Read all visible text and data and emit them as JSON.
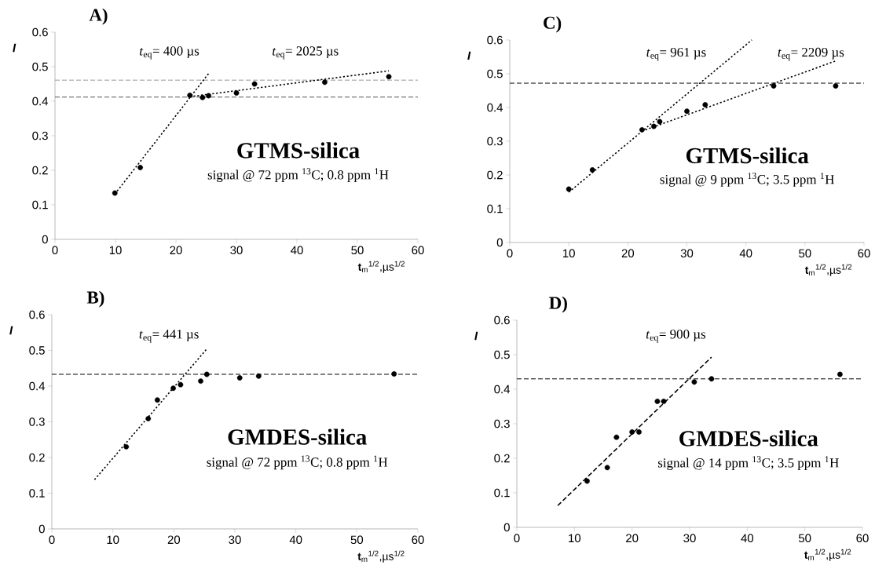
{
  "chart_data": [
    {
      "type": "scatter",
      "title": "A)",
      "xlabel": "**t**$_{m}$$^{1/2}$,µs$^{1/2}$",
      "ylabel": "I",
      "xlim": [
        0,
        60
      ],
      "ylim": [
        0,
        0.6
      ],
      "xticks": [
        0,
        10,
        20,
        30,
        40,
        50,
        60
      ],
      "yticks": [
        0,
        0.1,
        0.2,
        0.3,
        0.4,
        0.5,
        0.6
      ],
      "series": [
        {
          "marker": "circle",
          "color": "#000000",
          "x": [
            9.9,
            14.1,
            22.3,
            24.4,
            25.4,
            30.0,
            33.0,
            44.6,
            55.2
          ],
          "values": [
            0.134,
            0.208,
            0.417,
            0.411,
            0.416,
            0.424,
            0.45,
            0.455,
            0.471
          ]
        },
        {
          "type": "line",
          "marker": "none",
          "line_style": "dotted",
          "color": "#000000",
          "x": [
            9.9,
            25.4
          ],
          "values": [
            0.131,
            0.48
          ]
        },
        {
          "type": "line",
          "marker": "none",
          "line_style": "dotted",
          "color": "#000000",
          "x": [
            22.3,
            55.2
          ],
          "values": [
            0.413,
            0.488
          ]
        }
      ],
      "ref_lines": [
        {
          "axis": "y",
          "value": 0.461,
          "color": "#999999",
          "line_style": "dashed"
        },
        {
          "axis": "y",
          "value": 0.412,
          "color": "#555555",
          "line_style": "dashed"
        }
      ],
      "annotations": [
        "*t*$_{eq}$= 400 µs",
        "*t*$_{eq}$= 2025 µs",
        "GTMS-silica",
        "signal @ 72 ppm $^{13}$C; 0.8 ppm $^{1}$H"
      ]
    },
    {
      "type": "scatter",
      "title": "C)",
      "xlabel": "**t**$_{m}$$^{1/2}$,µs$^{1/2}$",
      "ylabel": "I",
      "xlim": [
        0,
        60
      ],
      "ylim": [
        0,
        0.6
      ],
      "xticks": [
        0,
        10,
        20,
        30,
        40,
        50,
        60
      ],
      "yticks": [
        0,
        0.1,
        0.2,
        0.3,
        0.4,
        0.5,
        0.6
      ],
      "series": [
        {
          "marker": "circle",
          "color": "#000000",
          "x": [
            10.0,
            14.0,
            22.4,
            24.4,
            25.4,
            30.0,
            33.1,
            44.7,
            55.2
          ],
          "values": [
            0.158,
            0.215,
            0.334,
            0.344,
            0.358,
            0.389,
            0.408,
            0.464,
            0.464
          ]
        },
        {
          "type": "line",
          "marker": "none",
          "line_style": "dotted",
          "color": "#000000",
          "x": [
            10.0,
            41.0
          ],
          "values": [
            0.149,
            0.6
          ]
        },
        {
          "type": "line",
          "marker": "none",
          "line_style": "dotted",
          "color": "#000000",
          "x": [
            22.4,
            55.2
          ],
          "values": [
            0.33,
            0.538
          ]
        }
      ],
      "ref_lines": [
        {
          "axis": "y",
          "value": 0.472,
          "color": "#000000",
          "line_style": "dashed"
        }
      ],
      "annotations": [
        "*t*$_{eq}$= 961 µs",
        "*t*$_{eq}$= 2209 µs",
        "GTMS-silica",
        "signal @ 9 ppm $^{13}$C; 3.5 ppm $^{1}$H"
      ]
    },
    {
      "type": "scatter",
      "title": "B)",
      "xlabel": "**t**$_{m}$$^{1/2}$,µs$^{1/2}$",
      "ylabel": "I",
      "xlim": [
        0,
        60
      ],
      "ylim": [
        0,
        0.6
      ],
      "xticks": [
        0,
        10,
        20,
        30,
        40,
        50,
        60
      ],
      "yticks": [
        0,
        0.1,
        0.2,
        0.3,
        0.4,
        0.5,
        0.6
      ],
      "series": [
        {
          "marker": "circle",
          "color": "#000000",
          "x": [
            12.2,
            15.8,
            17.3,
            19.9,
            21.1,
            24.4,
            25.4,
            30.8,
            33.9,
            56.1
          ],
          "values": [
            0.23,
            0.309,
            0.361,
            0.394,
            0.404,
            0.414,
            0.433,
            0.423,
            0.428,
            0.434
          ]
        },
        {
          "type": "line",
          "marker": "none",
          "line_style": "dotted",
          "color": "#000000",
          "x": [
            7.0,
            25.4
          ],
          "values": [
            0.138,
            0.504
          ]
        }
      ],
      "ref_lines": [
        {
          "axis": "y",
          "value": 0.433,
          "color": "#000000",
          "line_style": "dashed"
        }
      ],
      "annotations": [
        "*t*$_{eq}$= 441 µs",
        "GMDES-silica",
        "signal @ 72 ppm $^{13}$C; 0.8 ppm $^{1}$H"
      ]
    },
    {
      "type": "scatter",
      "title": "D)",
      "xlabel": "**t**$_{m}$$^{1/2}$,µs$^{1/2}$",
      "ylabel": "I",
      "xlim": [
        0,
        60
      ],
      "ylim": [
        0,
        0.6
      ],
      "xticks": [
        0,
        10,
        20,
        30,
        40,
        50,
        60
      ],
      "yticks": [
        0,
        0.1,
        0.2,
        0.3,
        0.4,
        0.5,
        0.6
      ],
      "series": [
        {
          "marker": "circle",
          "color": "#000000",
          "x": [
            12.2,
            15.7,
            17.3,
            20.0,
            21.2,
            24.4,
            25.5,
            30.8,
            33.8,
            56.1
          ],
          "values": [
            0.134,
            0.173,
            0.261,
            0.276,
            0.276,
            0.365,
            0.365,
            0.421,
            0.43,
            0.443
          ]
        },
        {
          "type": "line",
          "marker": "none",
          "line_style": "dashed",
          "color": "#000000",
          "x": [
            7.1,
            33.8
          ],
          "values": [
            0.063,
            0.493
          ]
        }
      ],
      "ref_lines": [
        {
          "axis": "y",
          "value": 0.43,
          "color": "#000000",
          "line_style": "dashed"
        }
      ],
      "annotations": [
        "*t*$_{eq}$= 900 µs",
        "GMDES-silica",
        "signal @ 14 ppm $^{13}$C; 3.5 ppm $^{1}$H"
      ]
    }
  ]
}
